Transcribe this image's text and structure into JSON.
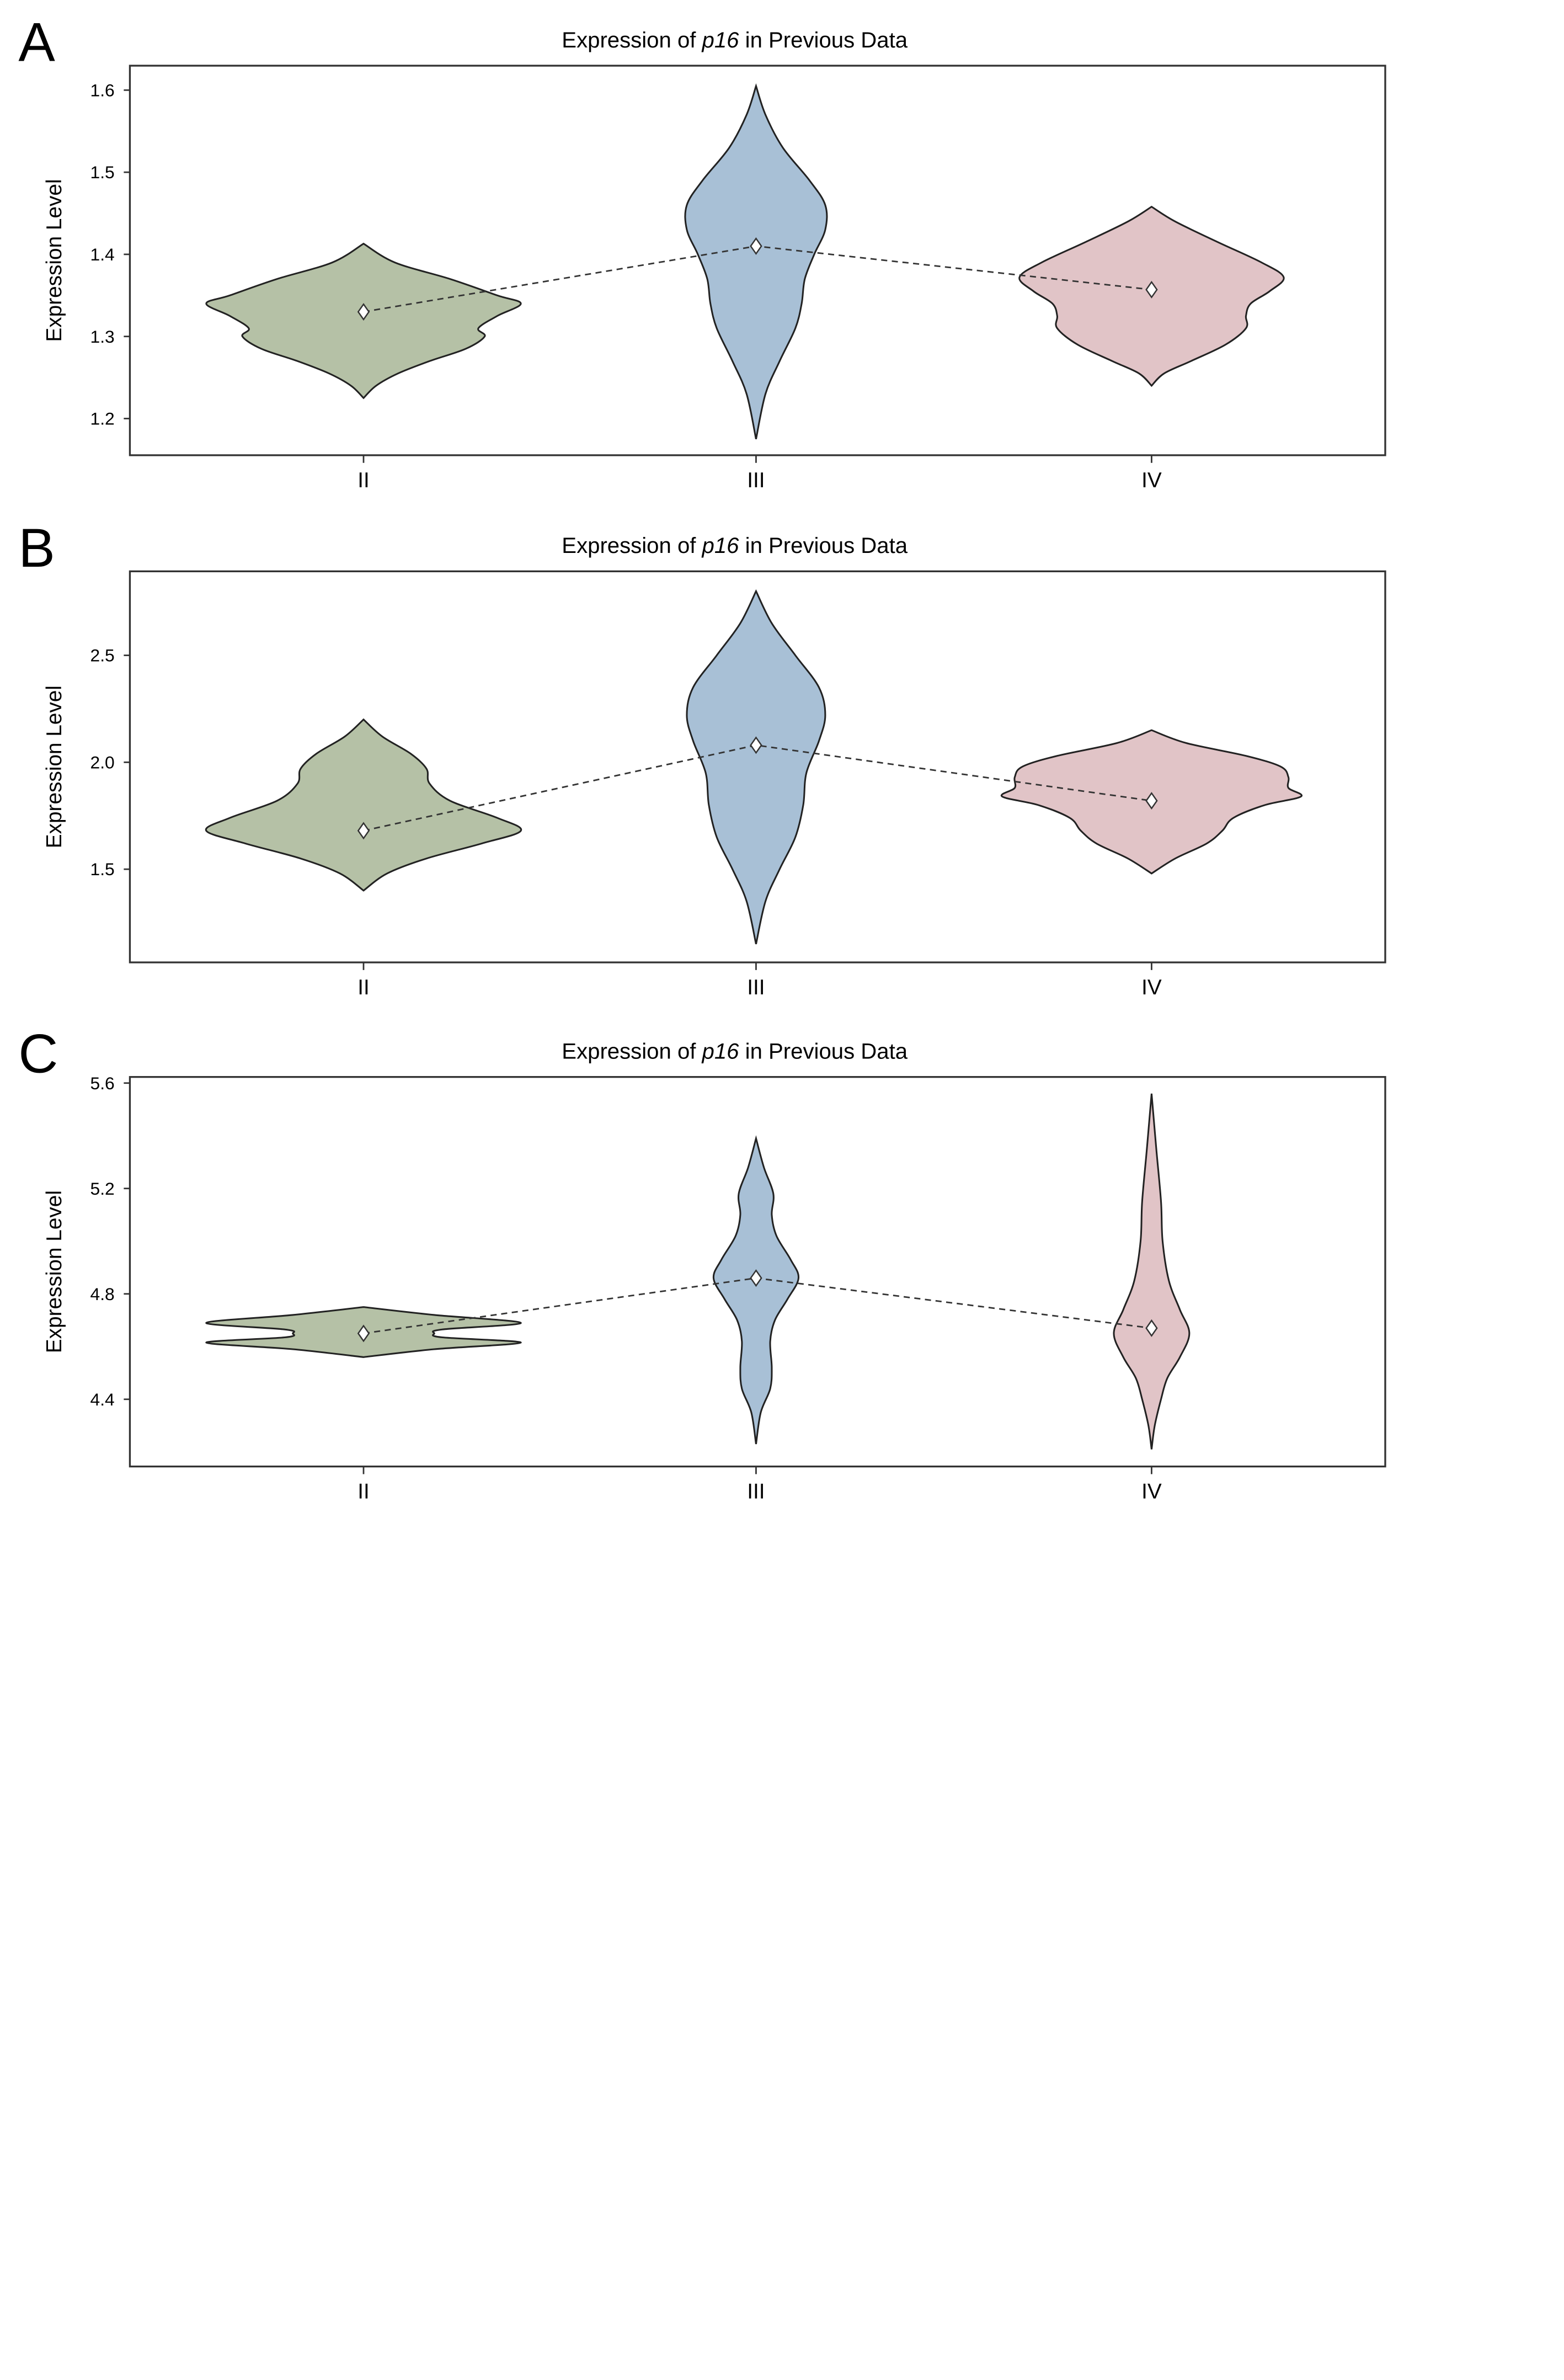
{
  "colors": {
    "II": "#b5c1a6",
    "III": "#a8c0d6",
    "IV": "#e1c4c7"
  },
  "chart_data": [
    {
      "panel_label": "A",
      "type": "violin",
      "title_prefix": "Expression of ",
      "title_gene": "p16",
      "title_suffix": " in Previous Data",
      "xlabel": "",
      "ylabel": "Expression Level",
      "categories": [
        "II",
        "III",
        "IV"
      ],
      "yticks": [
        "1.2",
        "1.3",
        "1.4",
        "1.5",
        "1.6"
      ],
      "ylim": [
        1.155,
        1.63
      ],
      "means": [
        1.33,
        1.41,
        1.357
      ],
      "density": [
        [
          [
            1.413,
            0
          ],
          [
            1.39,
            0.2
          ],
          [
            1.37,
            0.55
          ],
          [
            1.35,
            0.85
          ],
          [
            1.34,
            1.0
          ],
          [
            1.325,
            0.85
          ],
          [
            1.31,
            0.73
          ],
          [
            1.3,
            0.77
          ],
          [
            1.285,
            0.65
          ],
          [
            1.27,
            0.42
          ],
          [
            1.255,
            0.22
          ],
          [
            1.24,
            0.08
          ],
          [
            1.225,
            0
          ]
        ],
        [
          [
            1.605,
            0
          ],
          [
            1.57,
            0.06
          ],
          [
            1.53,
            0.17
          ],
          [
            1.49,
            0.34
          ],
          [
            1.46,
            0.44
          ],
          [
            1.43,
            0.44
          ],
          [
            1.4,
            0.37
          ],
          [
            1.37,
            0.31
          ],
          [
            1.34,
            0.29
          ],
          [
            1.31,
            0.25
          ],
          [
            1.27,
            0.15
          ],
          [
            1.23,
            0.06
          ],
          [
            1.175,
            0
          ]
        ],
        [
          [
            1.458,
            0
          ],
          [
            1.44,
            0.15
          ],
          [
            1.415,
            0.42
          ],
          [
            1.39,
            0.7
          ],
          [
            1.372,
            0.84
          ],
          [
            1.355,
            0.75
          ],
          [
            1.34,
            0.63
          ],
          [
            1.325,
            0.6
          ],
          [
            1.31,
            0.6
          ],
          [
            1.29,
            0.47
          ],
          [
            1.27,
            0.25
          ],
          [
            1.255,
            0.08
          ],
          [
            1.24,
            0
          ]
        ]
      ]
    },
    {
      "panel_label": "B",
      "type": "violin",
      "title_prefix": "Expression of ",
      "title_gene": "p16",
      "title_suffix": " in Previous Data",
      "xlabel": "",
      "ylabel": "Expression Level",
      "categories": [
        "II",
        "III",
        "IV"
      ],
      "yticks": [
        "1.5",
        "2.0",
        "2.5"
      ],
      "ylim": [
        1.1,
        2.9
      ],
      "means": [
        1.68,
        2.08,
        1.82
      ],
      "density": [
        [
          [
            2.2,
            0
          ],
          [
            2.12,
            0.12
          ],
          [
            2.04,
            0.3
          ],
          [
            1.97,
            0.4
          ],
          [
            1.9,
            0.42
          ],
          [
            1.82,
            0.55
          ],
          [
            1.74,
            0.85
          ],
          [
            1.68,
            1.0
          ],
          [
            1.62,
            0.75
          ],
          [
            1.55,
            0.4
          ],
          [
            1.48,
            0.15
          ],
          [
            1.4,
            0
          ]
        ],
        [
          [
            2.8,
            0
          ],
          [
            2.65,
            0.1
          ],
          [
            2.5,
            0.25
          ],
          [
            2.35,
            0.4
          ],
          [
            2.22,
            0.44
          ],
          [
            2.1,
            0.4
          ],
          [
            1.95,
            0.32
          ],
          [
            1.8,
            0.3
          ],
          [
            1.65,
            0.25
          ],
          [
            1.5,
            0.15
          ],
          [
            1.35,
            0.06
          ],
          [
            1.15,
            0
          ]
        ],
        [
          [
            2.15,
            0
          ],
          [
            2.09,
            0.22
          ],
          [
            2.03,
            0.6
          ],
          [
            1.98,
            0.82
          ],
          [
            1.93,
            0.87
          ],
          [
            1.88,
            0.87
          ],
          [
            1.84,
            0.95
          ],
          [
            1.8,
            0.72
          ],
          [
            1.74,
            0.52
          ],
          [
            1.68,
            0.45
          ],
          [
            1.62,
            0.35
          ],
          [
            1.55,
            0.15
          ],
          [
            1.48,
            0
          ]
        ]
      ]
    },
    {
      "panel_label": "C",
      "type": "violin",
      "title_prefix": "Expression of ",
      "title_gene": "p16",
      "title_suffix": " in Previous Data",
      "xlabel": "",
      "ylabel": "Expression Level",
      "categories": [
        "II",
        "III",
        "IV"
      ],
      "yticks": [
        "4.4",
        "4.8",
        "5.2",
        "5.6"
      ],
      "ylim": [
        4.16,
        5.62
      ],
      "means": [
        4.65,
        4.86,
        4.67
      ],
      "density": [
        [
          [
            4.75,
            0
          ],
          [
            4.72,
            0.45
          ],
          [
            4.69,
            1.0
          ],
          [
            4.665,
            0.5
          ],
          [
            4.65,
            0.45
          ],
          [
            4.635,
            0.5
          ],
          [
            4.615,
            1.0
          ],
          [
            4.59,
            0.45
          ],
          [
            4.56,
            0
          ]
        ],
        [
          [
            5.39,
            0
          ],
          [
            5.28,
            0.05
          ],
          [
            5.18,
            0.11
          ],
          [
            5.1,
            0.1
          ],
          [
            5.02,
            0.13
          ],
          [
            4.93,
            0.22
          ],
          [
            4.86,
            0.27
          ],
          [
            4.78,
            0.2
          ],
          [
            4.7,
            0.12
          ],
          [
            4.62,
            0.09
          ],
          [
            4.52,
            0.1
          ],
          [
            4.44,
            0.09
          ],
          [
            4.35,
            0.03
          ],
          [
            4.23,
            0
          ]
        ],
        [
          [
            5.56,
            0
          ],
          [
            5.35,
            0.03
          ],
          [
            5.15,
            0.06
          ],
          [
            5.0,
            0.07
          ],
          [
            4.85,
            0.11
          ],
          [
            4.74,
            0.18
          ],
          [
            4.65,
            0.24
          ],
          [
            4.56,
            0.18
          ],
          [
            4.48,
            0.1
          ],
          [
            4.4,
            0.06
          ],
          [
            4.3,
            0.02
          ],
          [
            4.21,
            0
          ]
        ]
      ]
    }
  ]
}
